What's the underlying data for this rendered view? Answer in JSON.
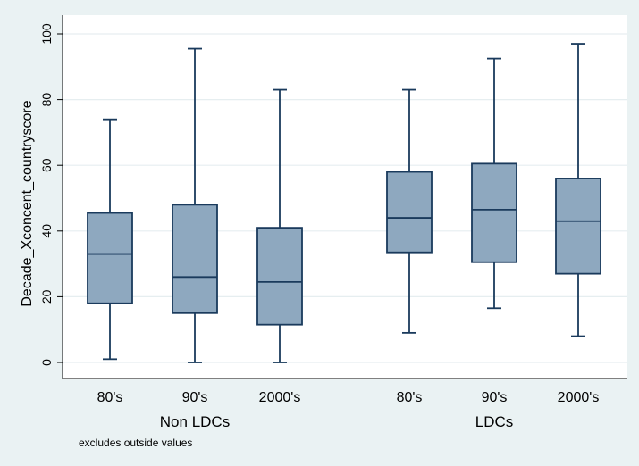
{
  "chart_data": {
    "type": "box",
    "ylabel": "Decade_Xconcent_countryscore",
    "ylim": [
      0,
      100
    ],
    "yticks": [
      0,
      20,
      40,
      60,
      80,
      100
    ],
    "grid": true,
    "groups": [
      "Non LDCs",
      "LDCs"
    ],
    "boxes": [
      {
        "group": "Non LDCs",
        "label": "80's",
        "min": 1,
        "q1": 18,
        "median": 33,
        "q3": 45.5,
        "max": 74
      },
      {
        "group": "Non LDCs",
        "label": "90's",
        "min": 0,
        "q1": 15,
        "median": 26,
        "q3": 48,
        "max": 95.5
      },
      {
        "group": "Non LDCs",
        "label": "2000's",
        "min": 0,
        "q1": 11.5,
        "median": 24.5,
        "q3": 41,
        "max": 83
      },
      {
        "group": "LDCs",
        "label": "80's",
        "min": 9,
        "q1": 33.5,
        "median": 44,
        "q3": 58,
        "max": 83
      },
      {
        "group": "LDCs",
        "label": "90's",
        "min": 16.5,
        "q1": 30.5,
        "median": 46.5,
        "q3": 60.5,
        "max": 92.5
      },
      {
        "group": "LDCs",
        "label": "2000's",
        "min": 8,
        "q1": 27,
        "median": 43,
        "q3": 56,
        "max": 97
      }
    ],
    "note": "excludes outside values",
    "colors": {
      "background": "#eaf2f3",
      "plot_area": "#ffffff",
      "grid": "#e6eef0",
      "box_fill": "#8ea8bf",
      "box_stroke": "#1a3a5c"
    }
  }
}
